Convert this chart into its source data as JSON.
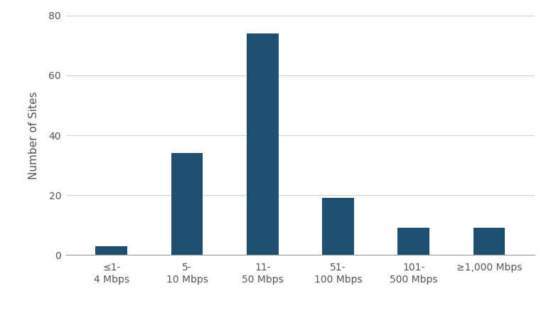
{
  "categories": [
    "≤1-\n4 Mbps",
    "5-\n10 Mbps",
    "11-\n50 Mbps",
    "51-\n100 Mbps",
    "101-\n500 Mbps",
    "≥1,000 Mbps"
  ],
  "values": [
    3,
    34,
    74,
    19,
    9,
    9
  ],
  "bar_color": "#1e4f6e",
  "ylabel": "Number of Sites",
  "ylim": [
    0,
    80
  ],
  "yticks": [
    0,
    20,
    40,
    60,
    80
  ],
  "background_color": "#ffffff",
  "grid_color": "#d0d0d0",
  "bar_width": 0.42,
  "figsize": [
    7.75,
    4.37
  ],
  "dpi": 100
}
